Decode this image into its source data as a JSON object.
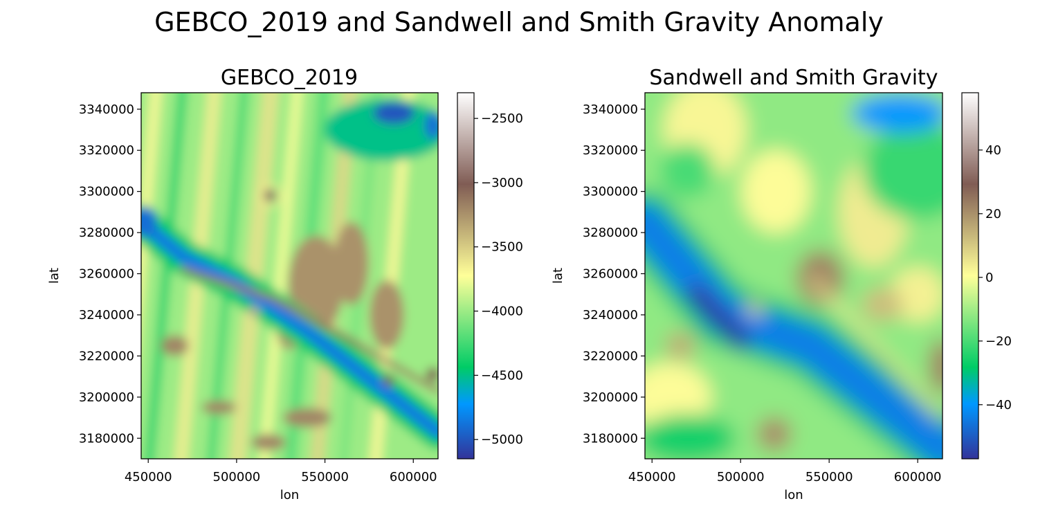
{
  "suptitle": "GEBCO_2019 and Sandwell and Smith Gravity Anomaly",
  "colormap": {
    "name": "terrain",
    "stops": [
      {
        "t": 0.0,
        "color": "#333399"
      },
      {
        "t": 0.15,
        "color": "#0098ff"
      },
      {
        "t": 0.25,
        "color": "#00cc66"
      },
      {
        "t": 0.5,
        "color": "#ffff99"
      },
      {
        "t": 0.75,
        "color": "#805c54"
      },
      {
        "t": 1.0,
        "color": "#ffffff"
      }
    ]
  },
  "chart_data": [
    {
      "type": "heatmap",
      "title": "GEBCO_2019",
      "xlabel": "lon",
      "ylabel": "lat",
      "xlim": [
        446000,
        614000
      ],
      "ylim": [
        3170000,
        3348000
      ],
      "xticks": [
        450000,
        500000,
        550000,
        600000
      ],
      "xtick_labels": [
        "450000",
        "500000",
        "550000",
        "600000"
      ],
      "yticks": [
        3180000,
        3200000,
        3220000,
        3240000,
        3260000,
        3280000,
        3300000,
        3320000,
        3340000
      ],
      "ytick_labels": [
        "3180000",
        "3200000",
        "3220000",
        "3240000",
        "3260000",
        "3280000",
        "3300000",
        "3320000",
        "3340000"
      ],
      "colorbar": {
        "vmin": -5150,
        "vmax": -2300,
        "ticks": [
          -5000,
          -4500,
          -4000,
          -3500,
          -3000,
          -2500
        ],
        "tick_labels": [
          "−5000",
          "−4500",
          "−4000",
          "−3500",
          "−3000",
          "−2500"
        ]
      },
      "field": {
        "kind": "bathymetry",
        "features": [
          {
            "desc": "deep trough along diagonal",
            "points": [
              [
                446000,
                3285000
              ],
              [
                470000,
                3268000
              ],
              [
                500000,
                3255000
              ],
              [
                540000,
                3232000
              ],
              [
                614000,
                3183000
              ]
            ],
            "value": -4900
          },
          {
            "desc": "ridge crest along diagonal",
            "points": [
              [
                470000,
                3262000
              ],
              [
                520000,
                3248000
              ],
              [
                560000,
                3230000
              ],
              [
                614000,
                3203000
              ]
            ],
            "value": -3000
          },
          {
            "desc": "seamount",
            "point": [
              519000,
              3298000
            ],
            "value": -2950
          },
          {
            "desc": "deep basin",
            "point": [
              590000,
              3337000
            ],
            "value": -5000
          }
        ]
      }
    },
    {
      "type": "heatmap",
      "title": "Sandwell and Smith Gravity",
      "xlabel": "lon",
      "ylabel": "lat",
      "xlim": [
        446000,
        614000
      ],
      "ylim": [
        3170000,
        3348000
      ],
      "xticks": [
        450000,
        500000,
        550000,
        600000
      ],
      "xtick_labels": [
        "450000",
        "500000",
        "550000",
        "600000"
      ],
      "yticks": [
        3180000,
        3200000,
        3220000,
        3240000,
        3260000,
        3280000,
        3300000,
        3320000,
        3340000
      ],
      "ytick_labels": [
        "3180000",
        "3200000",
        "3220000",
        "3240000",
        "3260000",
        "3280000",
        "3300000",
        "3320000",
        "3340000"
      ],
      "colorbar": {
        "vmin": -57,
        "vmax": 58,
        "ticks": [
          -40,
          -20,
          0,
          20,
          40
        ],
        "tick_labels": [
          "−40",
          "−20",
          "0",
          "20",
          "40"
        ]
      },
      "field": {
        "kind": "gravity anomaly (mGal)",
        "features": [
          {
            "desc": "strong negative band",
            "points": [
              [
                446000,
                3285000
              ],
              [
                490000,
                3240000
              ],
              [
                540000,
                3225000
              ],
              [
                614000,
                3175000
              ]
            ],
            "value": -50
          },
          {
            "desc": "negative lobe",
            "point": [
              590000,
              3338000
            ],
            "value": -40
          },
          {
            "desc": "positive high",
            "point": [
              545000,
              3258000
            ],
            "value": 22
          },
          {
            "desc": "positive high",
            "point": [
              519000,
              3182000
            ],
            "value": 20
          },
          {
            "desc": "positive high",
            "point": [
              466000,
              3225000
            ],
            "value": 15
          }
        ]
      }
    }
  ]
}
